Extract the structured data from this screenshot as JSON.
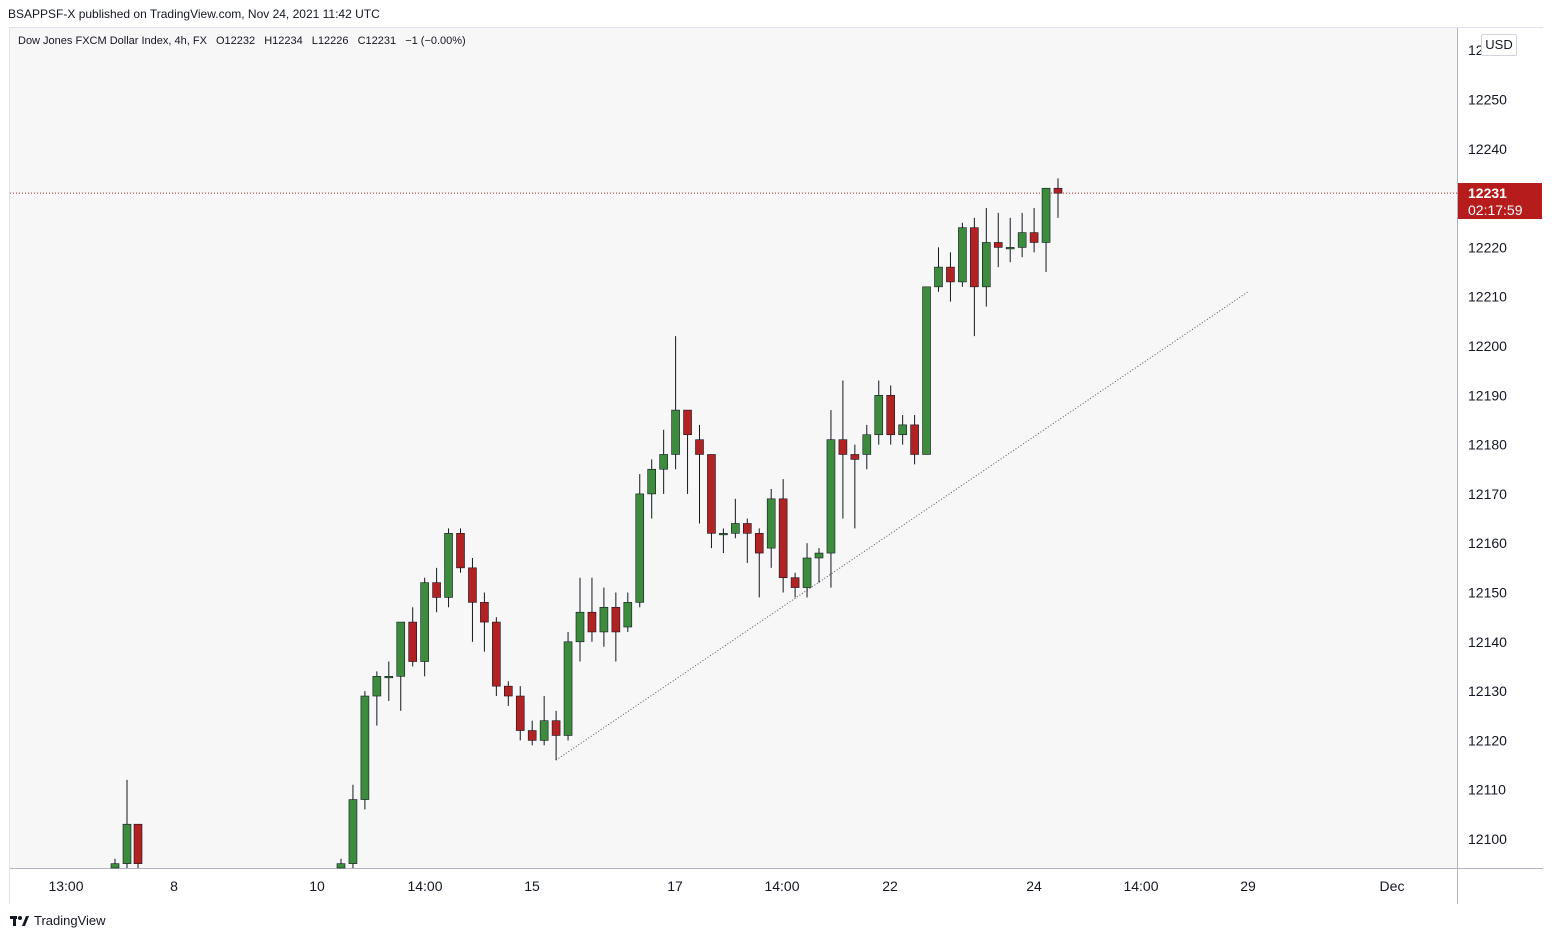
{
  "header": {
    "publisher_line": "BSAPPSF-X published on TradingView.com, Nov 24, 2021 11:42 UTC"
  },
  "symbol": {
    "name": "Dow Jones FXCM Dollar Index, 4h, FX",
    "open": "O12232",
    "high": "H12234",
    "low": "L12226",
    "close": "C12231",
    "change": "−1 (−0.00%)"
  },
  "currency": "USD",
  "last_price": {
    "value": "12231",
    "countdown": "02:17:59",
    "color": "#b71c1c"
  },
  "footer": {
    "brand": "TradingView"
  },
  "colors": {
    "up": "#3d8b3d",
    "down": "#b22222",
    "wick": "#131722"
  },
  "chart_data": {
    "type": "candlestick",
    "y_ticks": [
      12100,
      12110,
      12120,
      12130,
      12140,
      12150,
      12160,
      12170,
      12180,
      12190,
      12200,
      12210,
      12220,
      12230,
      12240,
      12250,
      12260
    ],
    "x_ticks": [
      "13:00",
      "8",
      "10",
      "14:00",
      "15",
      "17",
      "14:00",
      "22",
      "24",
      "14:00",
      "29",
      "Dec"
    ],
    "last_price": 12231,
    "candles": [
      {
        "o": 12094,
        "h": 12096,
        "l": 12094,
        "c": 12095
      },
      {
        "o": 12095,
        "h": 12112,
        "l": 12093,
        "c": 12103
      },
      {
        "o": 12103,
        "h": 12103,
        "l": 12094,
        "c": 12095
      },
      {
        "o": 12094,
        "h": 12096,
        "l": 12094,
        "c": 12095
      },
      {
        "o": 12095,
        "h": 12111,
        "l": 12094,
        "c": 12108
      },
      {
        "o": 12108,
        "h": 12130,
        "l": 12106,
        "c": 12129
      },
      {
        "o": 12129,
        "h": 12134,
        "l": 12123,
        "c": 12133
      },
      {
        "o": 12133,
        "h": 12136,
        "l": 12128,
        "c": 12133
      },
      {
        "o": 12133,
        "h": 12144,
        "l": 12126,
        "c": 12144
      },
      {
        "o": 12144,
        "h": 12147,
        "l": 12135,
        "c": 12136
      },
      {
        "o": 12136,
        "h": 12153,
        "l": 12133,
        "c": 12152
      },
      {
        "o": 12152,
        "h": 12155,
        "l": 12146,
        "c": 12149
      },
      {
        "o": 12149,
        "h": 12163,
        "l": 12147,
        "c": 12162
      },
      {
        "o": 12162,
        "h": 12163,
        "l": 12154,
        "c": 12155
      },
      {
        "o": 12155,
        "h": 12157,
        "l": 12140,
        "c": 12148
      },
      {
        "o": 12148,
        "h": 12150,
        "l": 12138,
        "c": 12144
      },
      {
        "o": 12144,
        "h": 12145,
        "l": 12129,
        "c": 12131
      },
      {
        "o": 12131,
        "h": 12132,
        "l": 12127,
        "c": 12129
      },
      {
        "o": 12129,
        "h": 12131,
        "l": 12120,
        "c": 12122
      },
      {
        "o": 12122,
        "h": 12124,
        "l": 12119,
        "c": 12120
      },
      {
        "o": 12120,
        "h": 12129,
        "l": 12119,
        "c": 12124
      },
      {
        "o": 12124,
        "h": 12126,
        "l": 12116,
        "c": 12121
      },
      {
        "o": 12121,
        "h": 12142,
        "l": 12120,
        "c": 12140
      },
      {
        "o": 12140,
        "h": 12153,
        "l": 12136,
        "c": 12146
      },
      {
        "o": 12146,
        "h": 12153,
        "l": 12140,
        "c": 12142
      },
      {
        "o": 12142,
        "h": 12151,
        "l": 12139,
        "c": 12147
      },
      {
        "o": 12147,
        "h": 12150,
        "l": 12136,
        "c": 12142
      },
      {
        "o": 12143,
        "h": 12150,
        "l": 12142,
        "c": 12148
      },
      {
        "o": 12148,
        "h": 12174,
        "l": 12147,
        "c": 12170
      },
      {
        "o": 12170,
        "h": 12177,
        "l": 12165,
        "c": 12175
      },
      {
        "o": 12175,
        "h": 12183,
        "l": 12170,
        "c": 12178
      },
      {
        "o": 12178,
        "h": 12202,
        "l": 12175,
        "c": 12187
      },
      {
        "o": 12187,
        "h": 12187,
        "l": 12170,
        "c": 12182
      },
      {
        "o": 12181,
        "h": 12184,
        "l": 12164,
        "c": 12178
      },
      {
        "o": 12178,
        "h": 12178,
        "l": 12159,
        "c": 12162
      },
      {
        "o": 12162,
        "h": 12163,
        "l": 12158,
        "c": 12162
      },
      {
        "o": 12162,
        "h": 12169,
        "l": 12161,
        "c": 12164
      },
      {
        "o": 12164,
        "h": 12165,
        "l": 12156,
        "c": 12162
      },
      {
        "o": 12162,
        "h": 12163,
        "l": 12149,
        "c": 12158
      },
      {
        "o": 12159,
        "h": 12171,
        "l": 12155,
        "c": 12169
      },
      {
        "o": 12169,
        "h": 12173,
        "l": 12150,
        "c": 12153
      },
      {
        "o": 12153,
        "h": 12154,
        "l": 12149,
        "c": 12151
      },
      {
        "o": 12151,
        "h": 12160,
        "l": 12149,
        "c": 12157
      },
      {
        "o": 12157,
        "h": 12159,
        "l": 12152,
        "c": 12158
      },
      {
        "o": 12158,
        "h": 12187,
        "l": 12151,
        "c": 12181
      },
      {
        "o": 12181,
        "h": 12193,
        "l": 12165,
        "c": 12178
      },
      {
        "o": 12178,
        "h": 12180,
        "l": 12163,
        "c": 12177
      },
      {
        "o": 12178,
        "h": 12184,
        "l": 12175,
        "c": 12182
      },
      {
        "o": 12182,
        "h": 12193,
        "l": 12180,
        "c": 12190
      },
      {
        "o": 12190,
        "h": 12192,
        "l": 12180,
        "c": 12182
      },
      {
        "o": 12182,
        "h": 12186,
        "l": 12180,
        "c": 12184
      },
      {
        "o": 12184,
        "h": 12186,
        "l": 12176,
        "c": 12178
      },
      {
        "o": 12178,
        "h": 12212,
        "l": 12178,
        "c": 12212
      },
      {
        "o": 12212,
        "h": 12220,
        "l": 12211,
        "c": 12216
      },
      {
        "o": 12216,
        "h": 12219,
        "l": 12209,
        "c": 12213
      },
      {
        "o": 12213,
        "h": 12225,
        "l": 12212,
        "c": 12224
      },
      {
        "o": 12224,
        "h": 12226,
        "l": 12202,
        "c": 12212
      },
      {
        "o": 12212,
        "h": 12228,
        "l": 12208,
        "c": 12221
      },
      {
        "o": 12221,
        "h": 12227,
        "l": 12216,
        "c": 12220
      },
      {
        "o": 12220,
        "h": 12226,
        "l": 12217,
        "c": 12220
      },
      {
        "o": 12220,
        "h": 12227,
        "l": 12218,
        "c": 12223
      },
      {
        "o": 12223,
        "h": 12228,
        "l": 12219,
        "c": 12221
      },
      {
        "o": 12221,
        "h": 12232,
        "l": 12215,
        "c": 12232
      },
      {
        "o": 12232,
        "h": 12234,
        "l": 12226,
        "c": 12231
      }
    ]
  }
}
